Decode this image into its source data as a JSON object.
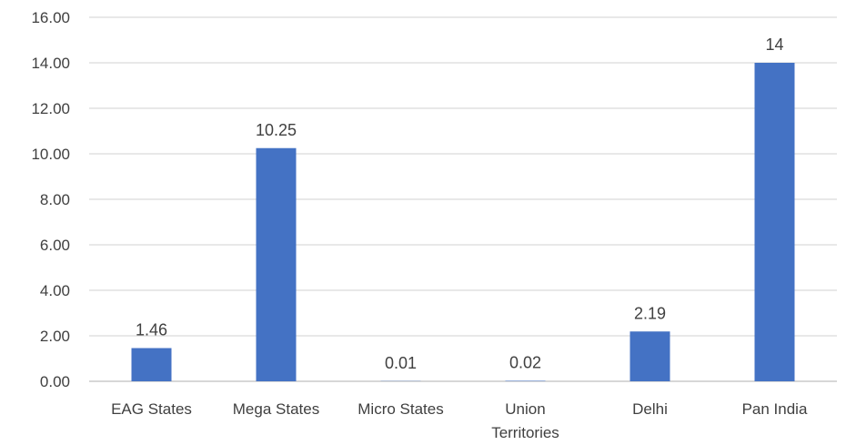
{
  "chart_data": {
    "type": "bar",
    "title": "",
    "xlabel": "",
    "ylabel": "",
    "categories": [
      [
        "EAG States"
      ],
      [
        "Mega States"
      ],
      [
        "Micro States"
      ],
      [
        "Union",
        "Territories"
      ],
      [
        "Delhi"
      ],
      [
        "Pan India"
      ]
    ],
    "values": [
      1.46,
      10.25,
      0.01,
      0.02,
      2.19,
      14
    ],
    "data_labels": [
      "1.46",
      "10.25",
      "0.01",
      "0.02",
      "2.19",
      "14"
    ],
    "ylim": [
      0,
      16
    ],
    "yticks": [
      "0.00",
      "2.00",
      "4.00",
      "6.00",
      "8.00",
      "10.00",
      "12.00",
      "14.00",
      "16.00"
    ],
    "grid": true,
    "legend": "none",
    "bar_color": "#4472c4"
  }
}
